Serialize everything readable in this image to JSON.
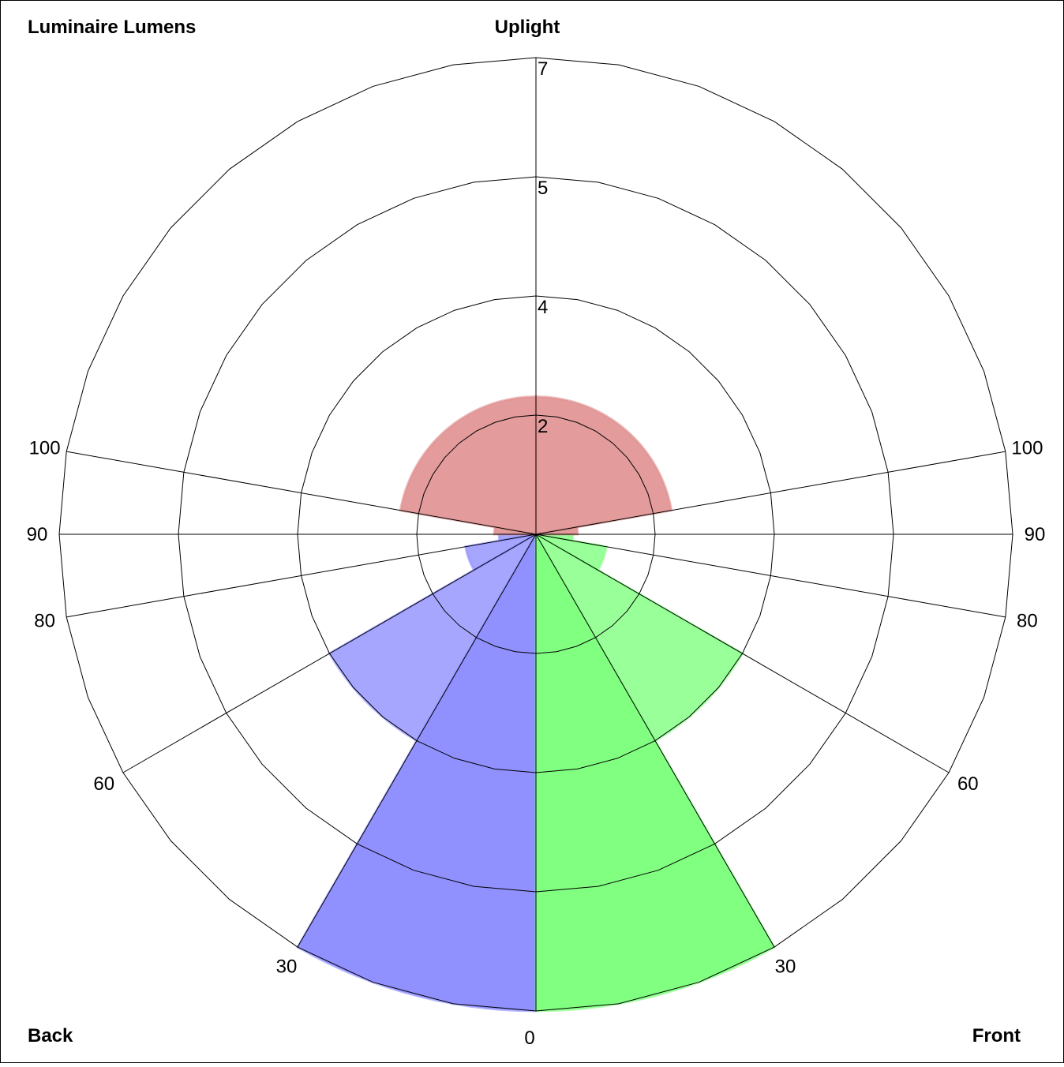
{
  "labels": {
    "top_left": "Luminaire Lumens",
    "top_center": "Uplight",
    "bottom_left": "Back",
    "bottom_right": "Front"
  },
  "chart_data": {
    "type": "polar_rose",
    "title": "Luminaire Lumens",
    "radial_ticks": [
      {
        "value": 2,
        "label": "2"
      },
      {
        "value": 4,
        "label": "4"
      },
      {
        "value": 5,
        "label": "5"
      },
      {
        "value": 7,
        "label": "7"
      }
    ],
    "radial_range": [
      0,
      8
    ],
    "angular_tick_angles": [
      0,
      30,
      60,
      80,
      90,
      100
    ],
    "angular_tick_labels_left": [
      "30",
      "60",
      "80",
      "90",
      "100"
    ],
    "angular_tick_labels_right": [
      "30",
      "60",
      "80",
      "90",
      "100"
    ],
    "bottom_tick_label": "0",
    "grid": true,
    "zones": [
      {
        "region": "Back",
        "color": "#9090ff",
        "bins": [
          {
            "from": 0,
            "to": 30,
            "value": 8.0
          },
          {
            "from": 30,
            "to": 60,
            "value": 4.0
          },
          {
            "from": 60,
            "to": 80,
            "value": 1.2
          },
          {
            "from": 80,
            "to": 90,
            "value": 0.62
          }
        ]
      },
      {
        "region": "Front",
        "color": "#80ff80",
        "bins": [
          {
            "from": 0,
            "to": 30,
            "value": 8.0
          },
          {
            "from": 30,
            "to": 60,
            "value": 4.0
          },
          {
            "from": 60,
            "to": 80,
            "value": 1.2
          },
          {
            "from": 80,
            "to": 90,
            "value": 0.62
          }
        ]
      },
      {
        "region": "Uplight",
        "color": "#e09090",
        "bins": [
          {
            "from": 90,
            "to": 100,
            "value": 0.7
          },
          {
            "from": 100,
            "to": 180,
            "value": 2.31
          }
        ]
      }
    ]
  }
}
